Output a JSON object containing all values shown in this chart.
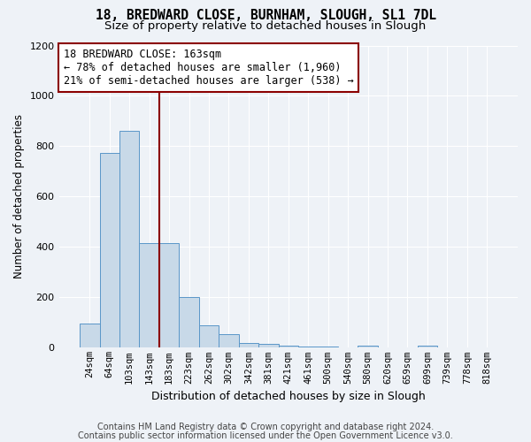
{
  "title1": "18, BREDWARD CLOSE, BURNHAM, SLOUGH, SL1 7DL",
  "title2": "Size of property relative to detached houses in Slough",
  "xlabel": "Distribution of detached houses by size in Slough",
  "ylabel": "Number of detached properties",
  "categories": [
    "24sqm",
    "64sqm",
    "103sqm",
    "143sqm",
    "183sqm",
    "223sqm",
    "262sqm",
    "302sqm",
    "342sqm",
    "381sqm",
    "421sqm",
    "461sqm",
    "500sqm",
    "540sqm",
    "580sqm",
    "620sqm",
    "659sqm",
    "699sqm",
    "739sqm",
    "778sqm",
    "818sqm"
  ],
  "values": [
    95,
    775,
    860,
    415,
    415,
    200,
    90,
    55,
    20,
    15,
    10,
    5,
    5,
    0,
    10,
    0,
    0,
    10,
    0,
    0,
    0
  ],
  "bar_color": "#c8d9e8",
  "bar_edge_color": "#5a96c8",
  "property_line_x": 3.5,
  "line_color": "#8b0000",
  "annotation_line0": "18 BREDWARD CLOSE: 163sqm",
  "annotation_line1": "← 78% of detached houses are smaller (1,960)",
  "annotation_line2": "21% of semi-detached houses are larger (538) →",
  "annotation_box_color": "#ffffff",
  "annotation_box_edge": "#8b0000",
  "footnote1": "Contains HM Land Registry data © Crown copyright and database right 2024.",
  "footnote2": "Contains public sector information licensed under the Open Government Licence v3.0.",
  "ylim": [
    0,
    1200
  ],
  "yticks": [
    0,
    200,
    400,
    600,
    800,
    1000,
    1200
  ],
  "background_color": "#eef2f7",
  "grid_color": "#ffffff",
  "title1_fontsize": 10.5,
  "title2_fontsize": 9.5,
  "annotation_fontsize": 8.5,
  "ylabel_fontsize": 8.5,
  "xlabel_fontsize": 9,
  "tick_fontsize": 7.5,
  "footnote_fontsize": 7
}
